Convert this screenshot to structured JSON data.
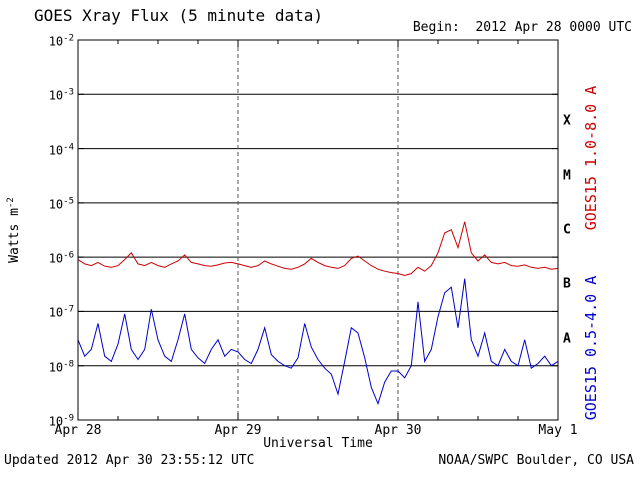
{
  "header": {
    "title": "GOES Xray Flux (5 minute data)",
    "begin_label": "Begin:  2012 Apr 28 0000 UTC"
  },
  "footer": {
    "updated": "Updated 2012 Apr 30 23:55:12 UTC",
    "source": "NOAA/SWPC Boulder, CO USA"
  },
  "colors": {
    "long_series": "#cc0000",
    "short_series": "#0000cc",
    "solid_grid": "#000000",
    "dashed_grid": "#555555",
    "background": "#ffffff"
  },
  "chart_data": {
    "type": "line",
    "title": "GOES Xray Flux (5 minute data)",
    "xlabel": "Universal Time",
    "ylabel": {
      "base": "Watts m",
      "exp": "-2"
    },
    "yscale": "log",
    "ylim": [
      1e-09,
      0.01
    ],
    "x_range_hours": [
      0,
      72
    ],
    "x_start_label": "2012 Apr 28 0000 UTC",
    "x_ticks": [
      {
        "t": 0,
        "label": "Apr 28"
      },
      {
        "t": 24,
        "label": "Apr 29"
      },
      {
        "t": 48,
        "label": "Apr 30"
      },
      {
        "t": 72,
        "label": "May 1"
      }
    ],
    "y_tick_exponents": [
      -2,
      -3,
      -4,
      -5,
      -6,
      -7,
      -8,
      -9
    ],
    "h_gridline_exponents": [
      -3,
      -4,
      -5,
      -6,
      -7,
      -8
    ],
    "v_gridline_hours": [
      24,
      48
    ],
    "flare_classes": [
      {
        "label": "X",
        "exp": -3.5
      },
      {
        "label": "M",
        "exp": -4.5
      },
      {
        "label": "C",
        "exp": -5.5
      },
      {
        "label": "B",
        "exp": -6.5
      },
      {
        "label": "A",
        "exp": -7.5
      }
    ],
    "series": [
      {
        "name": "GOES15 1.0-8.0 A",
        "color": "#cc0000",
        "x_start_hours": 0,
        "x_step_hours": 1,
        "values": [
          9e-07,
          7.5e-07,
          7e-07,
          8e-07,
          6.8e-07,
          6.5e-07,
          7e-07,
          9e-07,
          1.2e-06,
          7.5e-07,
          7e-07,
          8e-07,
          7e-07,
          6.5e-07,
          7.5e-07,
          8.5e-07,
          1.1e-06,
          8e-07,
          7.5e-07,
          7e-07,
          6.8e-07,
          7.2e-07,
          7.8e-07,
          8e-07,
          7.5e-07,
          7e-07,
          6.5e-07,
          7e-07,
          8.5e-07,
          7.5e-07,
          6.8e-07,
          6.2e-07,
          6e-07,
          6.5e-07,
          7.5e-07,
          9.5e-07,
          8e-07,
          7e-07,
          6.5e-07,
          6.2e-07,
          7e-07,
          9.5e-07,
          1.05e-06,
          8.5e-07,
          7e-07,
          6e-07,
          5.5e-07,
          5.2e-07,
          5e-07,
          4.6e-07,
          5e-07,
          6.5e-07,
          5.5e-07,
          7e-07,
          1.2e-06,
          2.8e-06,
          3.2e-06,
          1.5e-06,
          4.5e-06,
          1.2e-06,
          8.5e-07,
          1.1e-06,
          8e-07,
          7.5e-07,
          8e-07,
          7e-07,
          6.8e-07,
          7.2e-07,
          6.5e-07,
          6.2e-07,
          6.5e-07,
          6e-07,
          6.2e-07
        ]
      },
      {
        "name": "GOES15 0.5-4.0 A",
        "color": "#0000cc",
        "x_start_hours": 0,
        "x_step_hours": 1,
        "values": [
          3e-08,
          1.5e-08,
          2e-08,
          6e-08,
          1.5e-08,
          1.2e-08,
          2.5e-08,
          9e-08,
          2e-08,
          1.3e-08,
          2e-08,
          1.1e-07,
          3e-08,
          1.5e-08,
          1.2e-08,
          3e-08,
          9e-08,
          2e-08,
          1.4e-08,
          1.1e-08,
          2e-08,
          3e-08,
          1.5e-08,
          2e-08,
          1.8e-08,
          1.3e-08,
          1.1e-08,
          2e-08,
          5e-08,
          1.6e-08,
          1.2e-08,
          1e-08,
          9e-09,
          1.4e-08,
          6e-08,
          2.2e-08,
          1.3e-08,
          9e-09,
          7e-09,
          3e-09,
          1.2e-08,
          5e-08,
          4e-08,
          1.4e-08,
          4e-09,
          2e-09,
          5e-09,
          8e-09,
          8e-09,
          6e-09,
          1e-08,
          1.5e-07,
          1.2e-08,
          2e-08,
          8e-08,
          2.2e-07,
          2.8e-07,
          5e-08,
          4e-07,
          3e-08,
          1.5e-08,
          4e-08,
          1.2e-08,
          1e-08,
          2e-08,
          1.2e-08,
          1e-08,
          3e-08,
          9e-09,
          1.1e-08,
          1.5e-08,
          1e-08,
          1.2e-08
        ]
      }
    ]
  }
}
